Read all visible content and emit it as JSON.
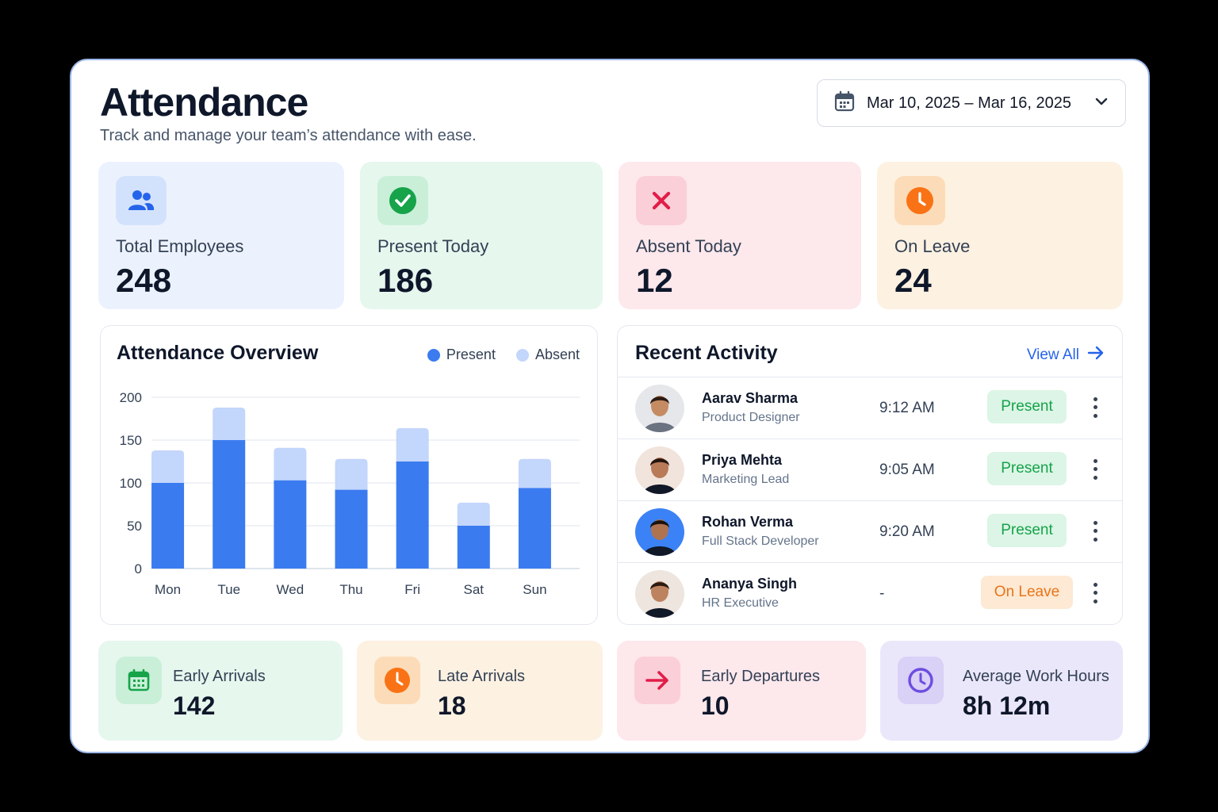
{
  "header": {
    "title": "Attendance",
    "subtitle": "Track and manage your team’s attendance with ease.",
    "date_range": "Mar 10, 2025 – Mar 16, 2025"
  },
  "stats": [
    {
      "label": "Total Employees",
      "value": "248",
      "icon": "users-icon",
      "color": "#2563eb"
    },
    {
      "label": "Present Today",
      "value": "186",
      "icon": "check-circle-icon",
      "color": "#16a34a"
    },
    {
      "label": "Absent Today",
      "value": "12",
      "icon": "x-icon",
      "color": "#e11d48"
    },
    {
      "label": "On Leave",
      "value": "24",
      "icon": "clock-icon",
      "color": "#f97316"
    }
  ],
  "overview": {
    "title": "Attendance Overview",
    "legend": {
      "present": "Present",
      "absent": "Absent"
    }
  },
  "chart_data": {
    "type": "bar",
    "stacked": true,
    "categories": [
      "Mon",
      "Tue",
      "Wed",
      "Thu",
      "Fri",
      "Sat",
      "Sun"
    ],
    "series": [
      {
        "name": "Present",
        "values": [
          100,
          150,
          103,
          92,
          125,
          50,
          94
        ],
        "color": "#3b7bf0"
      },
      {
        "name": "Absent",
        "values": [
          38,
          38,
          38,
          36,
          39,
          27,
          34
        ],
        "color": "#c3d6fb"
      }
    ],
    "yticks": [
      0,
      50,
      100,
      150,
      200
    ],
    "ylim": [
      0,
      200
    ],
    "grid": true,
    "legend": "top-right"
  },
  "activity": {
    "title": "Recent Activity",
    "view_all": "View All",
    "rows": [
      {
        "name": "Aarav Sharma",
        "role": "Product Designer",
        "time": "9:12 AM",
        "status": "Present",
        "kind": "present"
      },
      {
        "name": "Priya Mehta",
        "role": "Marketing Lead",
        "time": "9:05 AM",
        "status": "Present",
        "kind": "present"
      },
      {
        "name": "Rohan Verma",
        "role": "Full Stack Developer",
        "time": "9:20 AM",
        "status": "Present",
        "kind": "present"
      },
      {
        "name": "Ananya Singh",
        "role": "HR Executive",
        "time": "-",
        "status": "On Leave",
        "kind": "leave"
      }
    ]
  },
  "summary": [
    {
      "label": "Early Arrivals",
      "value": "142",
      "icon": "calendar-icon",
      "color": "#16a34a"
    },
    {
      "label": "Late Arrivals",
      "value": "18",
      "icon": "clock-icon",
      "color": "#f97316"
    },
    {
      "label": "Early Departures",
      "value": "10",
      "icon": "arrow-right-icon",
      "color": "#e11d48"
    },
    {
      "label": "Average Work Hours",
      "value": "8h 12m",
      "icon": "clock-outline-icon",
      "color": "#6d4de0"
    }
  ]
}
